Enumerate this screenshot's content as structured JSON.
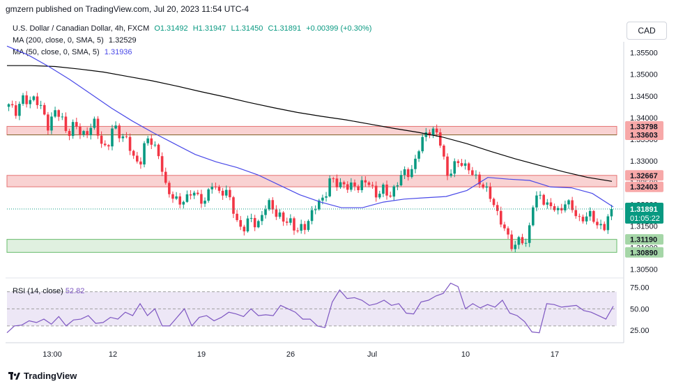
{
  "header": {
    "publisher_text": "gmzern published on TradingView.com, Jul 20, 2023 11:54 UTC-4"
  },
  "legend": {
    "symbol": "U.S. Dollar / Canadian Dollar, 4h, FXCM",
    "open": "O1.31492",
    "high": "H1.31947",
    "low": "L1.31450",
    "close": "C1.31891",
    "change": "+0.00399 (+0.30%)",
    "ma200_label": "MA (200, close, 0, SMA, 5)",
    "ma200_value": "1.32529",
    "ma50_label": "MA (50, close, 0, SMA, 5)",
    "ma50_value": "1.31936",
    "rsi_label": "RSI (14, close)",
    "rsi_value": "52.82"
  },
  "currency_button": "CAD",
  "footer": {
    "brand": "TradingView"
  },
  "colors": {
    "up": "#089981",
    "down": "#f23645",
    "ma200": "#000000",
    "ma50": "#4848e8",
    "rsi": "#7e57c2",
    "resistance_zone": "#f7c7c7",
    "support_zone": "#d8ecd8"
  },
  "chart_data": {
    "type": "candlestick",
    "ylim": [
      1.303,
      1.3575
    ],
    "y_ticks": [
      "1.35500",
      "1.35000",
      "1.34500",
      "1.34000",
      "1.33500",
      "1.33000",
      "1.32500",
      "1.32000",
      "1.31500",
      "1.31000",
      "1.30500"
    ],
    "x_ticks": [
      "13:00",
      "12",
      "19",
      "26",
      "Jul",
      "10",
      "17"
    ],
    "price_labels": [
      {
        "text": "1.33798",
        "value": 1.33798,
        "color": "#f23645"
      },
      {
        "text": "1.33603",
        "value": 1.33603,
        "color": "#f23645"
      },
      {
        "text": "1.32667",
        "value": 1.32667,
        "color": "#f23645"
      },
      {
        "text": "1.32403",
        "value": 1.32403,
        "color": "#f23645"
      },
      {
        "text": "1.31190",
        "value": 1.3119,
        "color": "#43a047"
      },
      {
        "text": "1.30890",
        "value": 1.3089,
        "color": "#43a047"
      }
    ],
    "last_price": {
      "text": "1.31891",
      "countdown": "01:05:22",
      "value": 1.31891
    },
    "zones": [
      {
        "name": "resistance-zone-upper",
        "top": 1.33798,
        "bottom": 1.33603,
        "kind": "resistance"
      },
      {
        "name": "resistance-zone-lower",
        "top": 1.32667,
        "bottom": 1.32403,
        "kind": "resistance"
      },
      {
        "name": "support-zone",
        "top": 1.3119,
        "bottom": 1.3089,
        "kind": "support"
      }
    ],
    "close_path": [
      1.3425,
      1.3415,
      1.3445,
      1.343,
      1.3455,
      1.3415,
      1.338,
      1.342,
      1.3395,
      1.3365,
      1.3385,
      1.336,
      1.337,
      1.3385,
      1.335,
      1.3325,
      1.338,
      1.3365,
      1.3345,
      1.331,
      1.3295,
      1.3345,
      1.335,
      1.3305,
      1.3235,
      1.3225,
      1.3195,
      1.3215,
      1.3235,
      1.3205,
      1.3215,
      1.3245,
      1.3225,
      1.324,
      1.3195,
      1.3155,
      1.3145,
      1.3165,
      1.3155,
      1.3185,
      1.3205,
      1.3175,
      1.3158,
      1.3165,
      1.3135,
      1.3145,
      1.3175,
      1.3195,
      1.3215,
      1.3255,
      1.3245,
      1.3252,
      1.3235,
      1.3242,
      1.3252,
      1.3245,
      1.3225,
      1.3235,
      1.3215,
      1.3245,
      1.3265,
      1.3275,
      1.3295,
      1.3345,
      1.3375,
      1.3365,
      1.334,
      1.3265,
      1.3285,
      1.3305,
      1.328,
      1.3265,
      1.3255,
      1.3225,
      1.3205,
      1.3165,
      1.3125,
      1.3105,
      1.3118,
      1.3105,
      1.3205,
      1.3215,
      1.3205,
      1.3195,
      1.3175,
      1.3215,
      1.3185,
      1.3165,
      1.3175,
      1.3168,
      1.3155,
      1.3145,
      1.3189
    ],
    "ma200_path": [
      1.352,
      1.352,
      1.3518,
      1.3512,
      1.3505,
      1.3495,
      1.3485,
      1.3473,
      1.346,
      1.3448,
      1.3435,
      1.3423,
      1.3412,
      1.3403,
      1.3395,
      1.3385,
      1.3375,
      1.3366,
      1.3355,
      1.334,
      1.3322,
      1.3305,
      1.329,
      1.3275,
      1.3262,
      1.3253
    ],
    "ma50_path": [
      1.3565,
      1.3545,
      1.3518,
      1.3488,
      1.3455,
      1.3422,
      1.3392,
      1.3365,
      1.334,
      1.3315,
      1.3298,
      1.3285,
      1.3268,
      1.3245,
      1.3222,
      1.3205,
      1.3192,
      1.3192,
      1.3205,
      1.3212,
      1.3215,
      1.3218,
      1.3232,
      1.3262,
      1.3258,
      1.3255,
      1.324,
      1.3238,
      1.3225,
      1.3194
    ],
    "rsi": {
      "ylim": [
        12,
        82
      ],
      "ticks": [
        "75.00",
        "50.00",
        "25.00"
      ],
      "band": [
        30,
        70
      ],
      "values": [
        22,
        30,
        31,
        36,
        34,
        38,
        32,
        41,
        30,
        37,
        38,
        42,
        33,
        34,
        40,
        38,
        46,
        42,
        56,
        42,
        50,
        30,
        30,
        40,
        50,
        30,
        40,
        42,
        36,
        40,
        46,
        44,
        41,
        50,
        42,
        43,
        42,
        54,
        50,
        46,
        38,
        38,
        30,
        28,
        58,
        72,
        62,
        63,
        60,
        54,
        56,
        60,
        54,
        56,
        45,
        44,
        58,
        60,
        65,
        68,
        80,
        76,
        50,
        56,
        51,
        55,
        52,
        60,
        45,
        42,
        35,
        23,
        22,
        56,
        55,
        52,
        53,
        54,
        48,
        46,
        42,
        38,
        53
      ]
    }
  }
}
